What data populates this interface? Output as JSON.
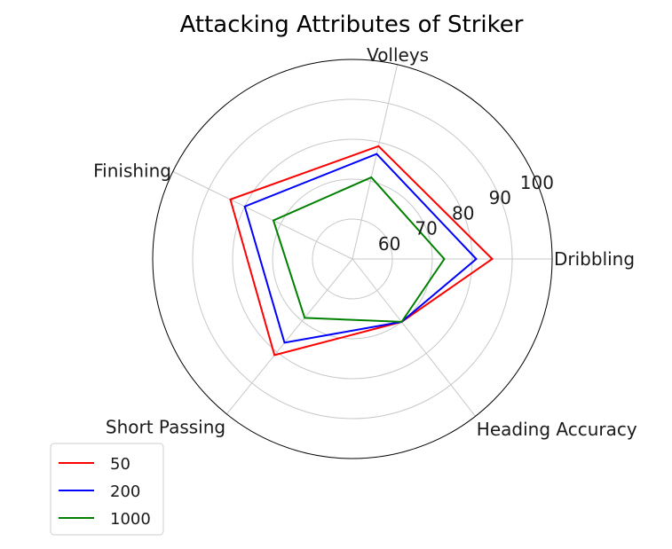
{
  "chart_data": {
    "type": "radar",
    "title": "Attacking Attributes of Striker",
    "categories": [
      "Dribbling",
      "Volleys",
      "Finishing",
      "Short Passing",
      "Heading Accuracy"
    ],
    "radial_ticks": [
      60,
      70,
      80,
      90,
      100
    ],
    "rlim": [
      50,
      100
    ],
    "grid": true,
    "legend_position": "lower-left",
    "series": [
      {
        "name": "50",
        "color": "#ff0000",
        "values": [
          85,
          79,
          84,
          81,
          70
        ]
      },
      {
        "name": "200",
        "color": "#0000ff",
        "values": [
          81,
          77,
          80,
          77,
          70
        ]
      },
      {
        "name": "1000",
        "color": "#008000",
        "values": [
          73,
          71,
          72,
          69,
          70
        ]
      }
    ]
  }
}
